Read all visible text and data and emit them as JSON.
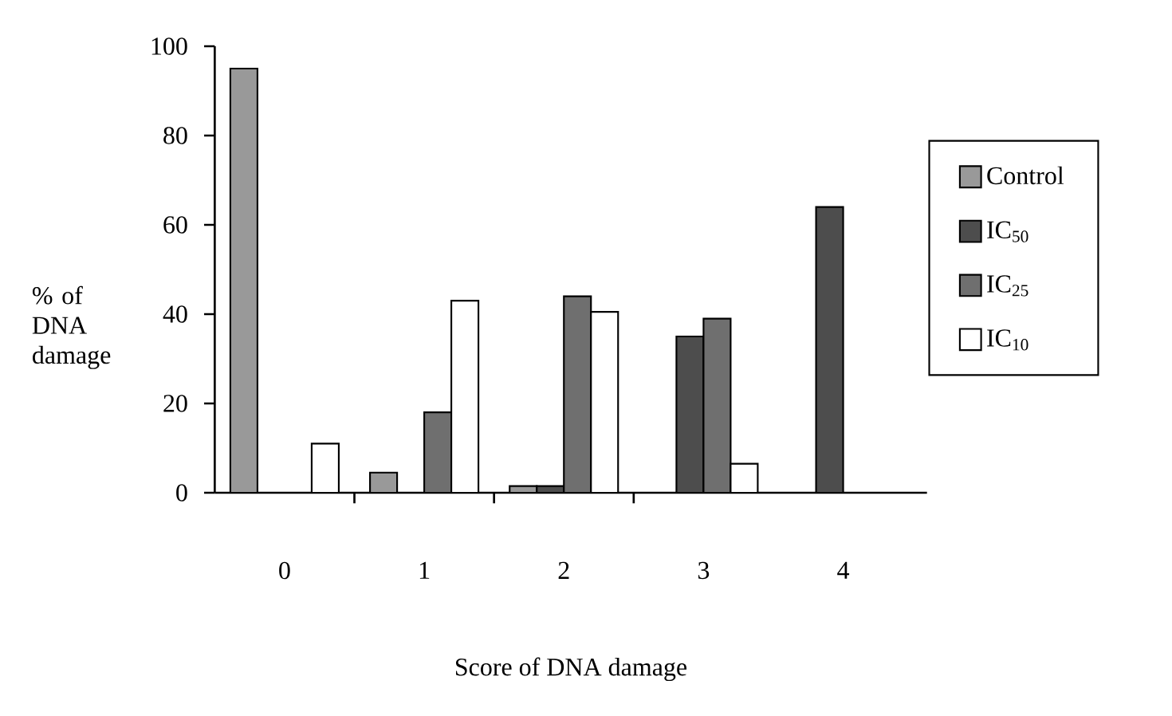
{
  "chart_data": {
    "type": "bar",
    "xlabel": "Score of DNA damage",
    "ylabel": "% of DNA damage",
    "categories": [
      "0",
      "1",
      "2",
      "3",
      "4"
    ],
    "series": [
      {
        "name": "Control",
        "color": "#999999",
        "values": [
          95,
          4.5,
          1.5,
          null,
          null
        ]
      },
      {
        "name": "IC$_{50}$",
        "color": "#4d4d4d",
        "values": [
          null,
          null,
          1.5,
          35,
          64
        ]
      },
      {
        "name": "IC$_{25}$",
        "color": "#6f6f6f",
        "values": [
          null,
          18,
          44,
          39,
          null
        ]
      },
      {
        "name": "IC$_{10}$",
        "color": "#ffffff",
        "values": [
          11,
          43,
          40.5,
          6.5,
          null
        ]
      }
    ],
    "ylim": [
      0,
      100
    ],
    "yticks": [
      0,
      20,
      40,
      60,
      80,
      100
    ],
    "grid": false,
    "legend": "right"
  }
}
